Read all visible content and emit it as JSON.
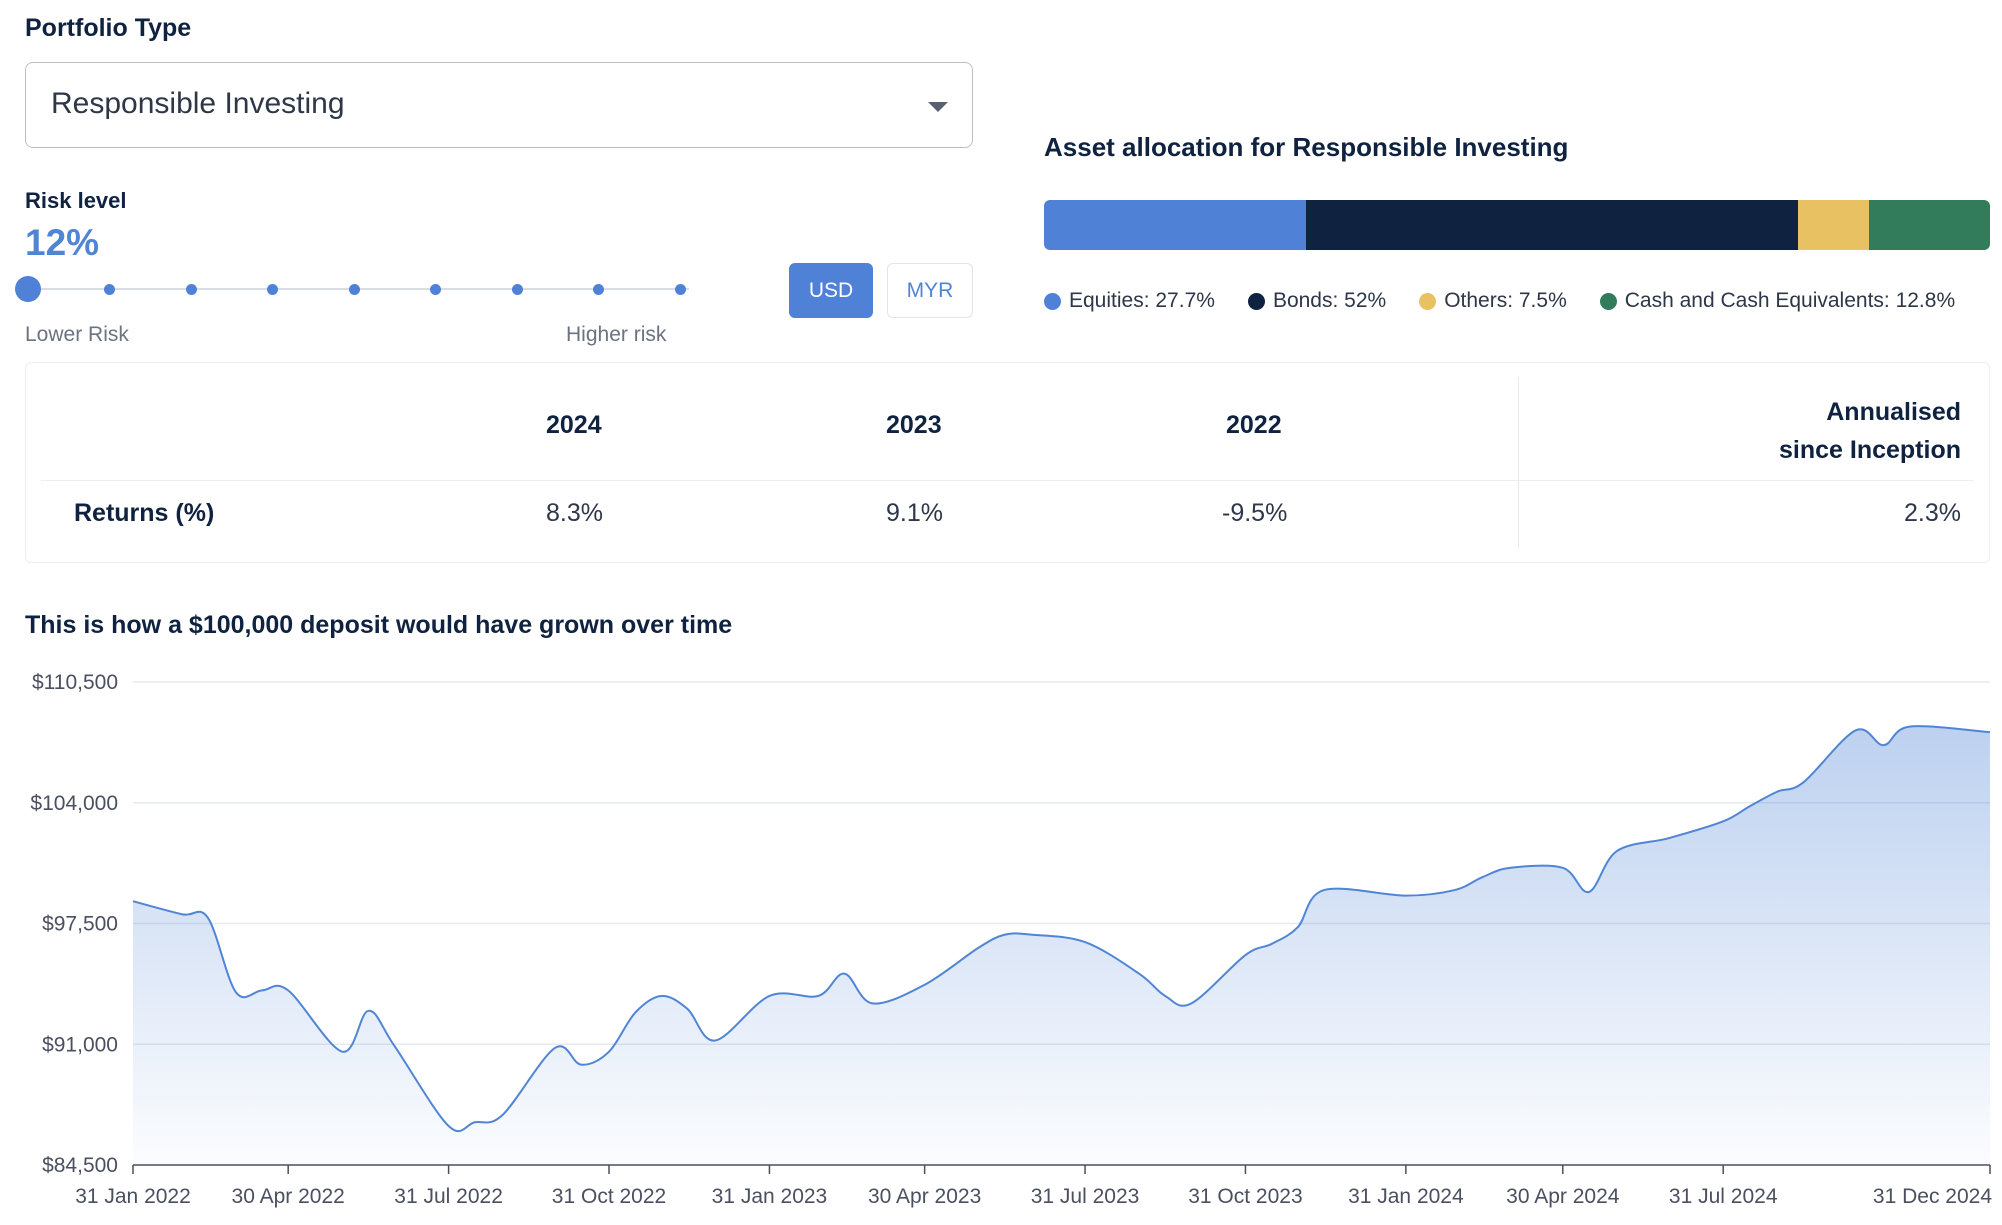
{
  "portfolio": {
    "label": "Portfolio Type",
    "selected": "Responsible Investing"
  },
  "risk": {
    "label": "Risk level",
    "value": "12%",
    "level": 1,
    "steps": 9,
    "low_label": "Lower Risk",
    "high_label": "Higher risk"
  },
  "currency": {
    "usd": "USD",
    "myr": "MYR",
    "active": "USD"
  },
  "allocation": {
    "title": "Asset allocation for Responsible Investing",
    "items": [
      {
        "label": "Equities: 27.7%",
        "pct": 27.7,
        "color": "#4f82d7"
      },
      {
        "label": "Bonds: 52%",
        "pct": 52,
        "color": "#0f2240"
      },
      {
        "label": "Others: 7.5%",
        "pct": 7.5,
        "color": "#e8c163"
      },
      {
        "label": "Cash and Cash Equivalents: 12.8%",
        "pct": 12.8,
        "color": "#337c5b"
      }
    ]
  },
  "returns": {
    "headers": [
      "2024",
      "2023",
      "2022"
    ],
    "annualised_line1": "Annualised",
    "annualised_line2": "since Inception",
    "row_label": "Returns (%)",
    "values": [
      "8.3%",
      "9.1%",
      "-9.5%"
    ],
    "annualised_value": "2.3%"
  },
  "growth": {
    "title": "This is how a $100,000 deposit would have grown over time"
  },
  "chart_data": {
    "type": "area",
    "title": "This is how a $100,000 deposit would have grown over time",
    "xlabel": "",
    "ylabel": "",
    "ylim": [
      84500,
      110500
    ],
    "yticks": [
      110500,
      104000,
      97500,
      91000,
      84500
    ],
    "ytick_labels": [
      "$110,500",
      "$104,000",
      "$97,500",
      "$91,000",
      "$84,500"
    ],
    "xlim": [
      "2022-01-31",
      "2024-12-31"
    ],
    "xtick_dates": [
      "2022-01-31",
      "2022-04-30",
      "2022-07-31",
      "2022-10-31",
      "2023-01-31",
      "2023-04-30",
      "2023-07-31",
      "2023-10-31",
      "2024-01-31",
      "2024-04-30",
      "2024-07-31",
      "2024-12-31"
    ],
    "xtick_labels": [
      "31 Jan 2022",
      "30 Apr 2022",
      "31 Jul 2022",
      "31 Oct 2022",
      "31 Jan 2023",
      "30 Apr 2023",
      "31 Jul 2023",
      "31 Oct 2023",
      "31 Jan 2024",
      "30 Apr 2024",
      "31 Jul 2024",
      "31 Dec 2024"
    ],
    "grid": true,
    "color": "#5085d6",
    "series": [
      {
        "x": [
          "2022-01-31",
          "2022-02-28",
          "2022-03-15",
          "2022-03-31",
          "2022-04-15",
          "2022-04-30",
          "2022-05-31",
          "2022-06-15",
          "2022-06-30",
          "2022-07-31",
          "2022-08-15",
          "2022-08-31",
          "2022-09-30",
          "2022-10-15",
          "2022-10-31",
          "2022-11-15",
          "2022-11-30",
          "2022-12-15",
          "2022-12-31",
          "2023-01-31",
          "2023-02-28",
          "2023-03-15",
          "2023-03-31",
          "2023-04-30",
          "2023-05-31",
          "2023-06-15",
          "2023-06-30",
          "2023-07-31",
          "2023-08-31",
          "2023-09-15",
          "2023-09-30",
          "2023-10-31",
          "2023-11-15",
          "2023-11-30",
          "2023-12-15",
          "2024-01-31",
          "2024-02-28",
          "2024-03-15",
          "2024-03-31",
          "2024-04-30",
          "2024-05-15",
          "2024-05-31",
          "2024-06-30",
          "2024-07-31",
          "2024-08-15",
          "2024-08-31",
          "2024-09-15",
          "2024-10-15",
          "2024-10-31",
          "2024-11-15",
          "2024-12-31"
        ],
        "values": [
          98700,
          98000,
          97800,
          93800,
          93900,
          93900,
          90600,
          92800,
          90900,
          86600,
          86800,
          87200,
          90800,
          89900,
          90600,
          92700,
          93600,
          92900,
          91200,
          93600,
          93600,
          94800,
          93200,
          94200,
          96200,
          96900,
          96900,
          96500,
          94800,
          93600,
          93200,
          95800,
          96400,
          97300,
          99300,
          99000,
          99300,
          100000,
          100500,
          100500,
          99200,
          101400,
          102100,
          103000,
          103800,
          104600,
          105100,
          107900,
          107100,
          108100,
          107800
        ]
      }
    ]
  }
}
